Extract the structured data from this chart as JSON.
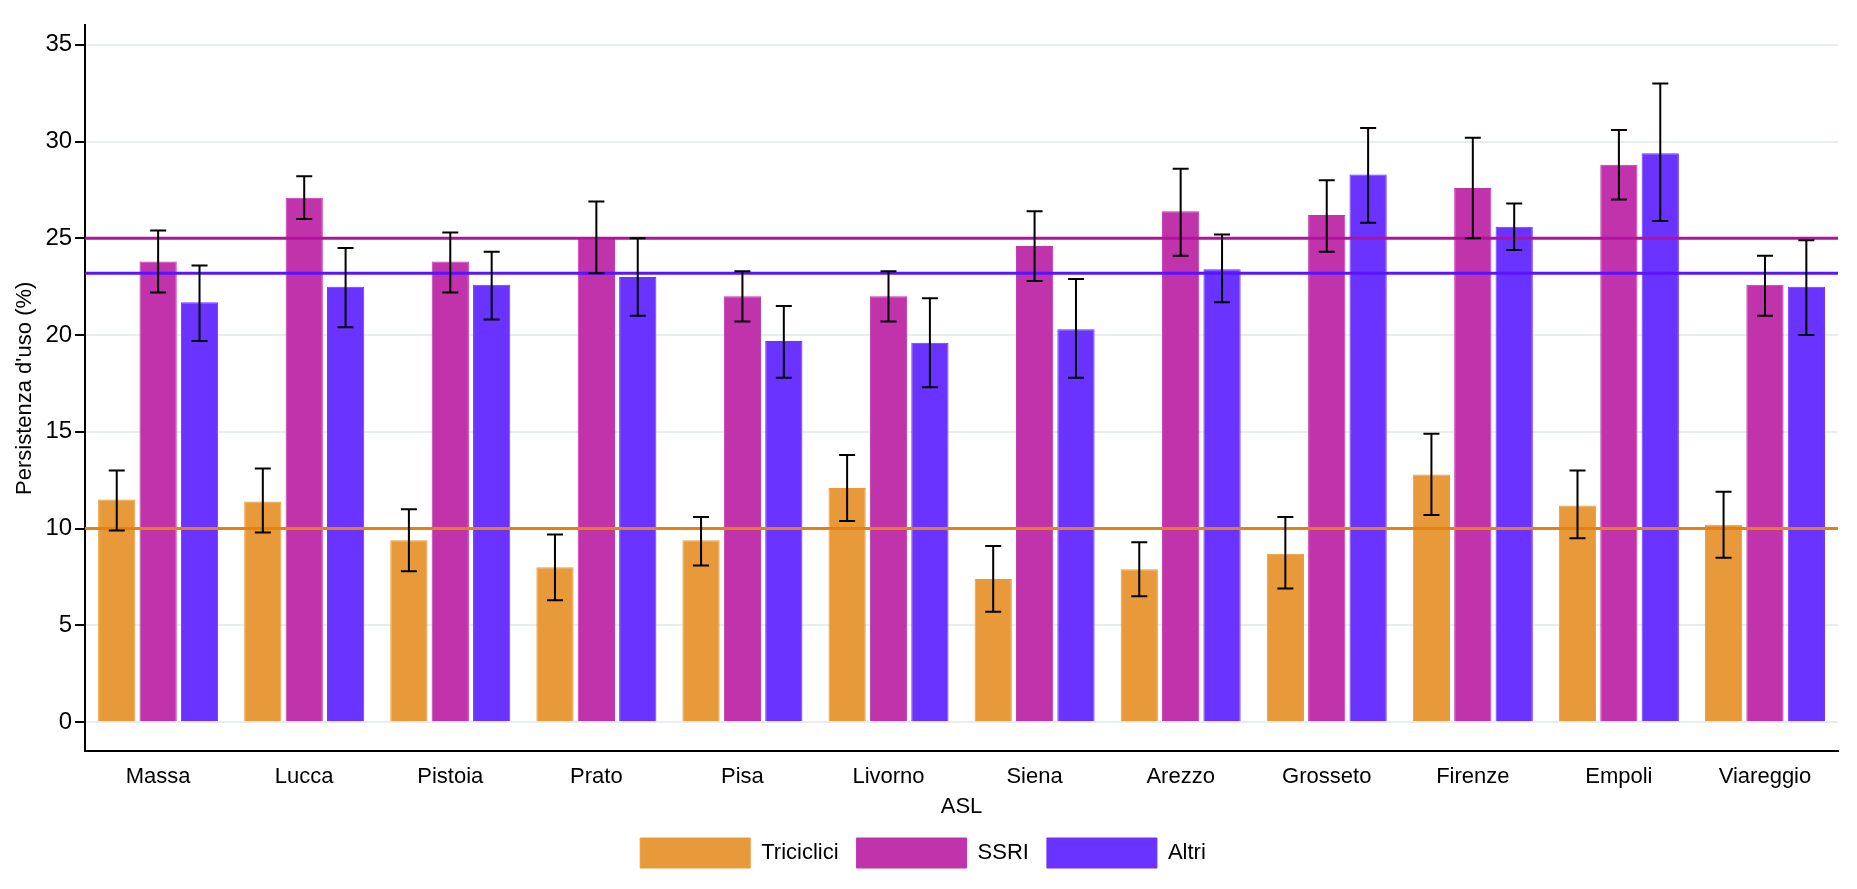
{
  "chart_data": {
    "type": "bar",
    "xlabel": "ASL",
    "ylabel": "Persistenza d'uso (%)",
    "categories": [
      "Massa",
      "Lucca",
      "Pistoia",
      "Prato",
      "Pisa",
      "Livorno",
      "Siena",
      "Arezzo",
      "Grosseto",
      "Firenze",
      "Empoli",
      "Viareggio"
    ],
    "series": [
      {
        "name": "Triciclici",
        "color": "#e89a3a",
        "values": [
          11.5,
          11.4,
          9.4,
          8.0,
          9.4,
          12.1,
          7.4,
          7.9,
          8.7,
          12.8,
          11.2,
          10.2
        ],
        "errors": [
          [
            9.9,
            13.0
          ],
          [
            9.8,
            13.1
          ],
          [
            7.8,
            11.0
          ],
          [
            6.3,
            9.7
          ],
          [
            8.1,
            10.6
          ],
          [
            10.4,
            13.8
          ],
          [
            5.7,
            9.1
          ],
          [
            6.5,
            9.3
          ],
          [
            6.9,
            10.6
          ],
          [
            10.7,
            14.9
          ],
          [
            9.5,
            13.0
          ],
          [
            8.5,
            11.9
          ]
        ]
      },
      {
        "name": "SSRI",
        "color": "#c133aa",
        "values": [
          23.8,
          27.1,
          23.8,
          25.0,
          22.0,
          22.0,
          24.6,
          26.4,
          26.2,
          27.6,
          28.8,
          22.6
        ],
        "errors": [
          [
            22.2,
            25.4
          ],
          [
            26.0,
            28.2
          ],
          [
            22.2,
            25.3
          ],
          [
            23.2,
            26.9
          ],
          [
            20.7,
            23.3
          ],
          [
            20.7,
            23.3
          ],
          [
            22.8,
            26.4
          ],
          [
            24.1,
            28.6
          ],
          [
            24.3,
            28.0
          ],
          [
            25.0,
            30.2
          ],
          [
            27.0,
            30.6
          ],
          [
            21.0,
            24.1
          ]
        ]
      },
      {
        "name": "Altri",
        "color": "#6a33ff",
        "values": [
          21.7,
          22.5,
          22.6,
          23.0,
          19.7,
          19.6,
          20.3,
          23.4,
          28.3,
          25.6,
          29.4,
          22.5
        ],
        "errors": [
          [
            19.7,
            23.6
          ],
          [
            20.4,
            24.5
          ],
          [
            20.8,
            24.3
          ],
          [
            21.0,
            25.0
          ],
          [
            17.8,
            21.5
          ],
          [
            17.3,
            21.9
          ],
          [
            17.8,
            22.9
          ],
          [
            21.7,
            25.2
          ],
          [
            25.8,
            30.7
          ],
          [
            24.4,
            26.8
          ],
          [
            25.9,
            33.0
          ],
          [
            20.0,
            24.9
          ]
        ]
      }
    ],
    "ref_lines": [
      {
        "axis": "y",
        "value": 10.0,
        "color": "#e6800e"
      },
      {
        "axis": "y",
        "value": 25.0,
        "color": "#b0149a"
      },
      {
        "axis": "y",
        "value": 23.2,
        "color": "#5a14ff"
      }
    ],
    "ylim": [
      -1.5,
      36
    ],
    "yticks": [
      0,
      5,
      10,
      15,
      20,
      25,
      30,
      35
    ],
    "grid": "y",
    "legend": "bottom"
  }
}
